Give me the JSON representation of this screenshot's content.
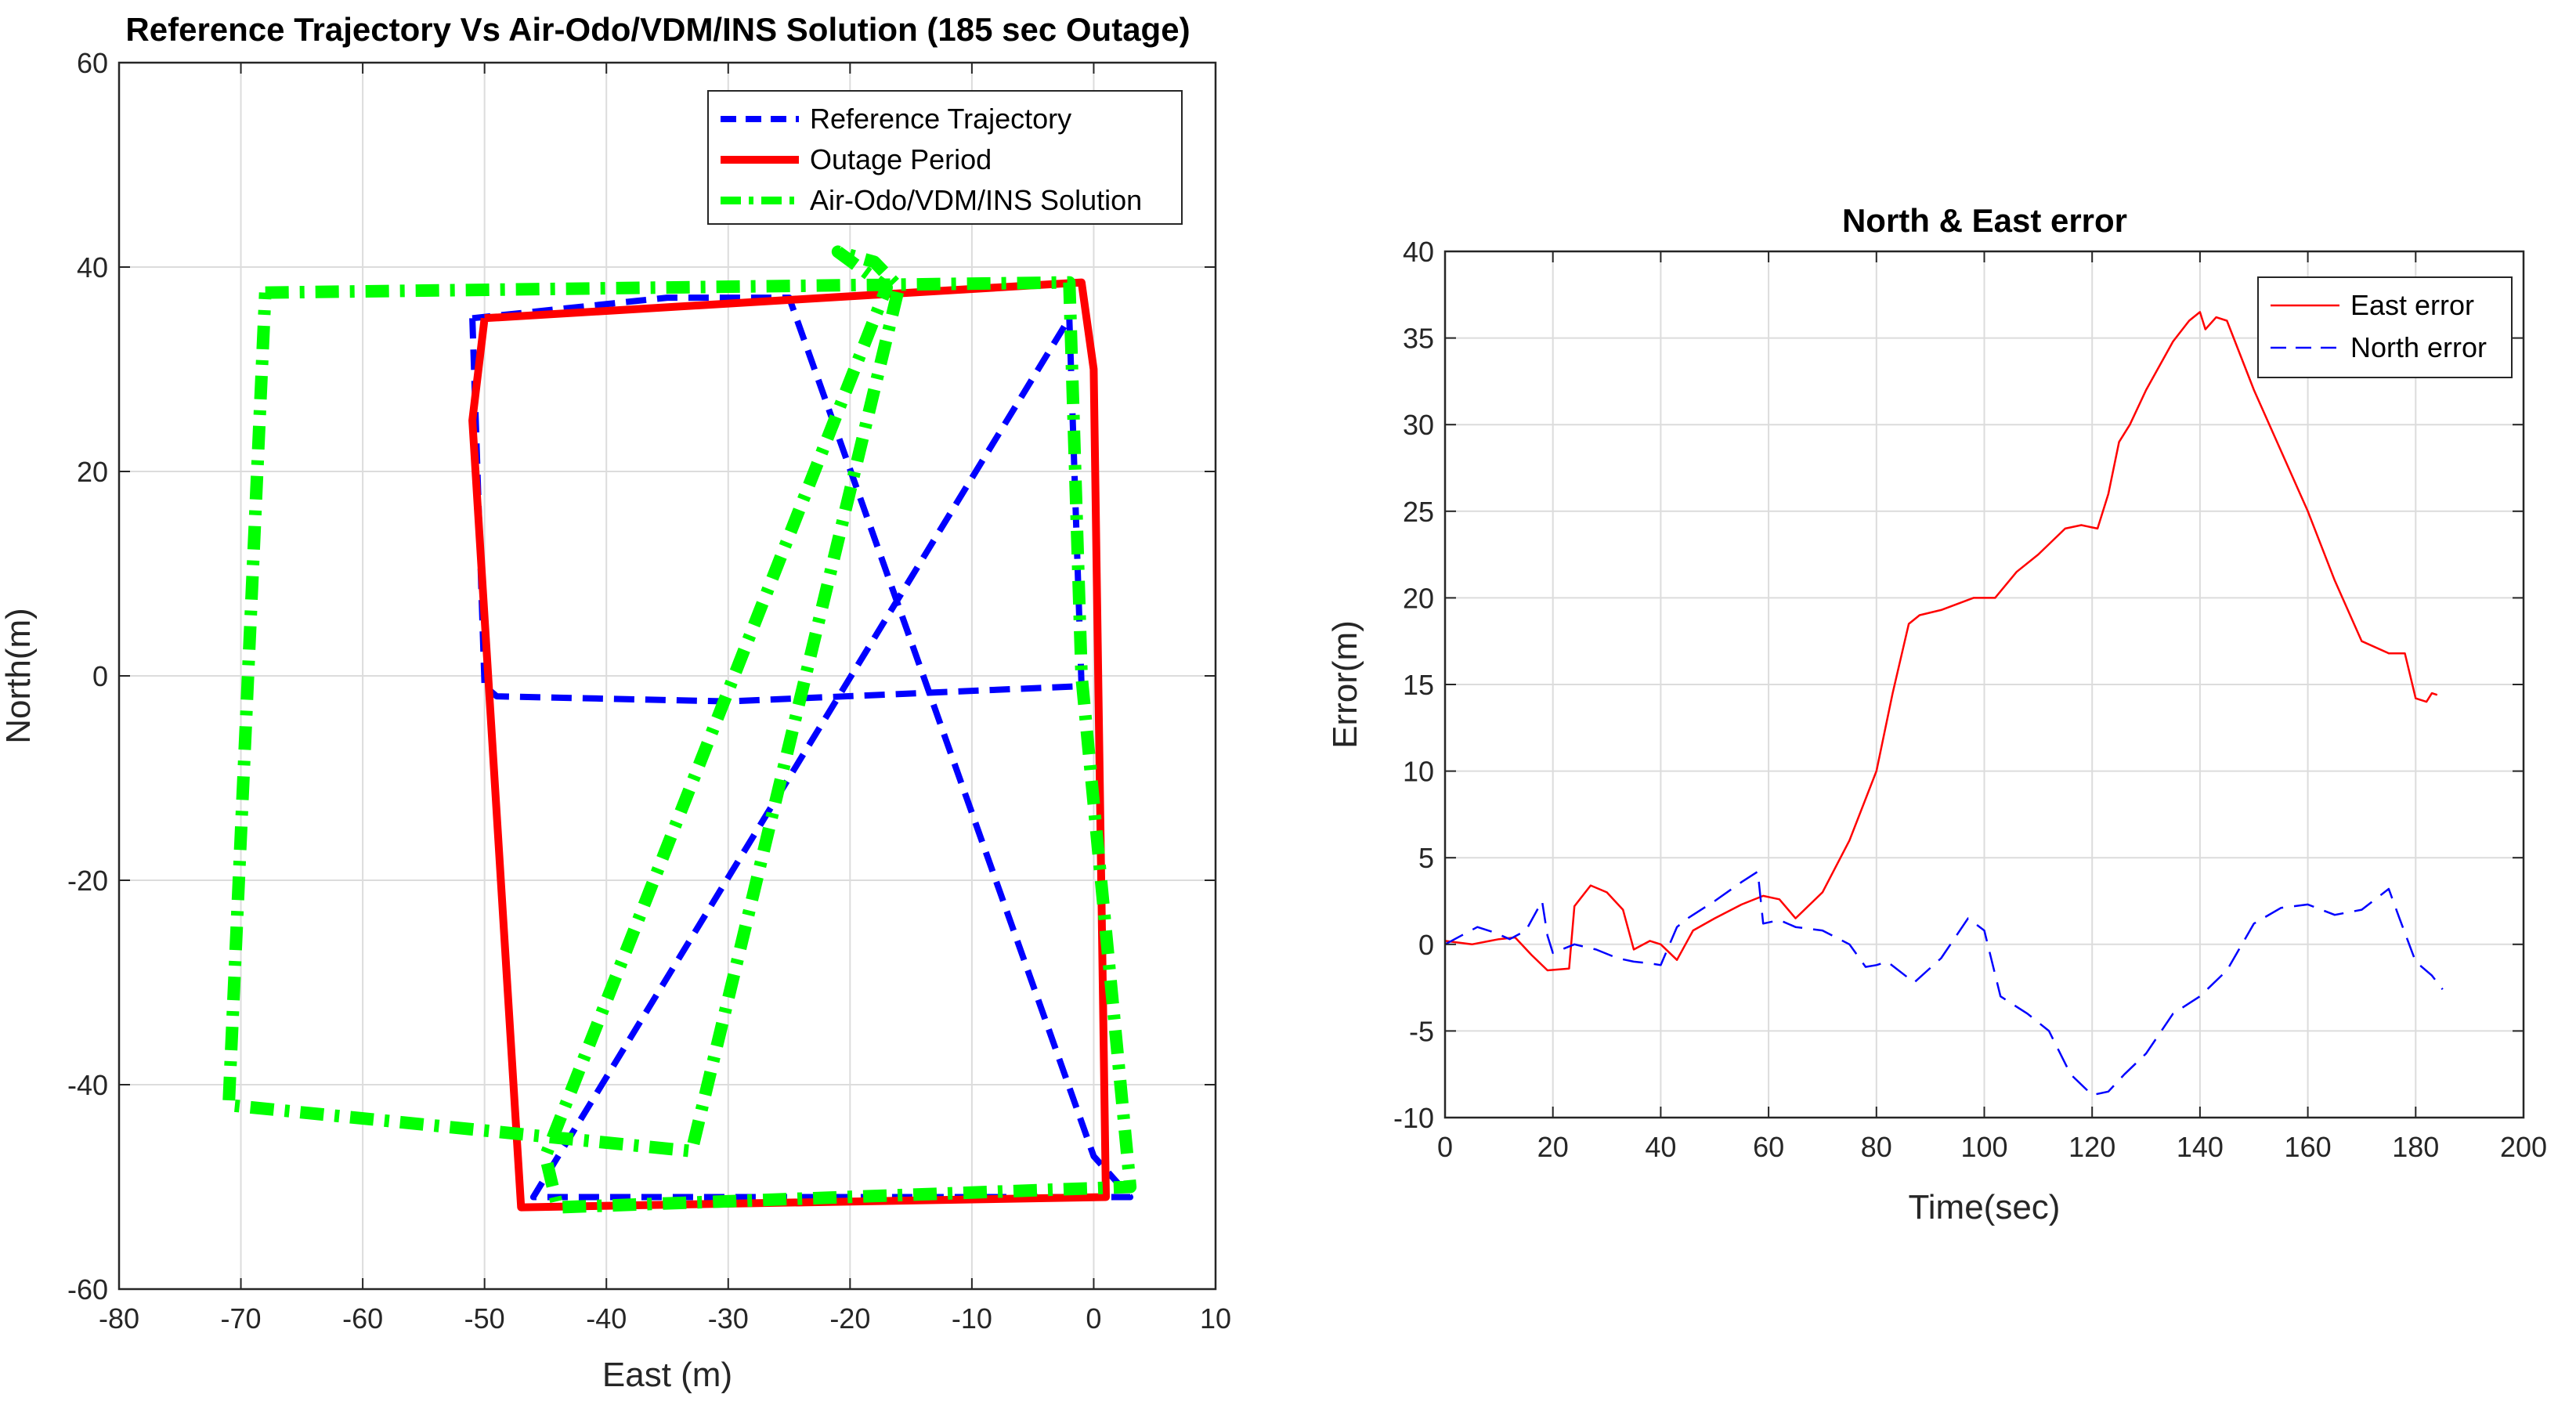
{
  "chart_data": [
    {
      "type": "line",
      "title": "Reference Trajectory Vs Air-Odo/VDM/INS Solution (185 sec Outage)",
      "xlabel": "East (m)",
      "ylabel": "North(m)",
      "xlim": [
        -80,
        10
      ],
      "ylim": [
        -60,
        60
      ],
      "xticks": [
        -80,
        -70,
        -60,
        -50,
        -40,
        -30,
        -20,
        -10,
        0,
        10
      ],
      "yticks": [
        -60,
        -40,
        -20,
        0,
        20,
        40,
        60
      ],
      "grid": true,
      "legend_position": "top-right",
      "series": [
        {
          "name": "Reference Trajectory",
          "color": "#0000ff",
          "style": "dashed",
          "points": [
            [
              -51,
              35
            ],
            [
              -50,
              -1
            ],
            [
              -49,
              -2
            ],
            [
              -30,
              -2.5
            ],
            [
              -1,
              -1
            ],
            [
              -2,
              35
            ],
            [
              -46,
              -51
            ],
            [
              -40,
              -51
            ],
            [
              3,
              -51
            ],
            [
              0,
              -47
            ],
            [
              -25,
              37
            ],
            [
              -35,
              37
            ],
            [
              -51,
              35
            ]
          ]
        },
        {
          "name": "Outage Period",
          "color": "#ff0000",
          "style": "solid",
          "points": [
            [
              -50,
              35
            ],
            [
              -1,
              38.5
            ],
            [
              0,
              30
            ],
            [
              1,
              -51
            ],
            [
              -47,
              -52
            ],
            [
              -51,
              25
            ],
            [
              -50,
              35
            ]
          ]
        },
        {
          "name": "Air-Odo/VDM/INS Solution",
          "color": "#00ff00",
          "style": "dash-dot",
          "points": [
            [
              -68,
              37.5
            ],
            [
              -2,
              38.5
            ],
            [
              -1,
              0
            ],
            [
              3,
              -50
            ],
            [
              -44,
              -52
            ],
            [
              -45,
              -47
            ],
            [
              -17,
              38
            ],
            [
              -21,
              41.5
            ],
            [
              -18,
              40.5
            ],
            [
              -16,
              38
            ],
            [
              -33,
              -46.5
            ],
            [
              -71,
              -42
            ],
            [
              -68,
              37.5
            ]
          ]
        }
      ]
    },
    {
      "type": "line",
      "title": "North & East error",
      "xlabel": "Time(sec)",
      "ylabel": "Error(m)",
      "xlim": [
        0,
        200
      ],
      "ylim": [
        -10,
        40
      ],
      "xticks": [
        0,
        20,
        40,
        60,
        80,
        100,
        120,
        140,
        160,
        180,
        200
      ],
      "yticks": [
        -10,
        -5,
        0,
        5,
        10,
        15,
        20,
        25,
        30,
        35,
        40
      ],
      "grid": true,
      "legend_position": "top-right",
      "series": [
        {
          "name": "East error",
          "color": "#ff0000",
          "style": "solid",
          "x": [
            0,
            5,
            10,
            13,
            16,
            19,
            23,
            24,
            27,
            30,
            33,
            35,
            38,
            40,
            43,
            46,
            50,
            55,
            59,
            62,
            65,
            70,
            75,
            80,
            83,
            86,
            88,
            92,
            98,
            102,
            106,
            110,
            115,
            118,
            121,
            123,
            125,
            127,
            130,
            135,
            138,
            140,
            141,
            143,
            145,
            150,
            155,
            160,
            165,
            170,
            175,
            178,
            180,
            182,
            183,
            184
          ],
          "values": [
            0.2,
            0,
            0.3,
            0.4,
            -0.6,
            -1.5,
            -1.4,
            2.2,
            3.4,
            3,
            2,
            -0.3,
            0.2,
            0,
            -0.9,
            0.8,
            1.5,
            2.3,
            2.8,
            2.6,
            1.5,
            3,
            6,
            10,
            14.5,
            18.5,
            19,
            19.3,
            20,
            20,
            21.5,
            22.5,
            24,
            24.2,
            24,
            26,
            29,
            30,
            32,
            34.8,
            36,
            36.5,
            35.5,
            36.2,
            36,
            32,
            28.5,
            25,
            21,
            17.5,
            16.8,
            16.8,
            14.2,
            14,
            14.5,
            14.4
          ]
        },
        {
          "name": "North error",
          "color": "#0000ff",
          "style": "dashed",
          "x": [
            0,
            3,
            6,
            9,
            12,
            15,
            18,
            19,
            20,
            24,
            28,
            32,
            35,
            38,
            40,
            43,
            45,
            50,
            55,
            58,
            59,
            62,
            65,
            70,
            75,
            78,
            80,
            82,
            87,
            92,
            97,
            100,
            103,
            108,
            112,
            116,
            120,
            123,
            126,
            130,
            135,
            140,
            145,
            150,
            155,
            160,
            165,
            170,
            175,
            177,
            180,
            183,
            185
          ],
          "values": [
            0,
            0.5,
            1,
            0.7,
            0.3,
            0.8,
            2.5,
            0.5,
            -0.5,
            0,
            -0.3,
            -0.8,
            -1,
            -1.1,
            -1.2,
            1,
            1.5,
            2.5,
            3.6,
            4.2,
            1.2,
            1.4,
            1,
            0.8,
            0,
            -1.3,
            -1.2,
            -1,
            -2.2,
            -0.8,
            1.5,
            0.8,
            -3,
            -4,
            -5,
            -7.5,
            -8.7,
            -8.5,
            -7.5,
            -6.3,
            -4,
            -3,
            -1.5,
            1.2,
            2.1,
            2.3,
            1.7,
            2,
            3.2,
            1.5,
            -1,
            -1.8,
            -2.6
          ]
        }
      ]
    }
  ]
}
